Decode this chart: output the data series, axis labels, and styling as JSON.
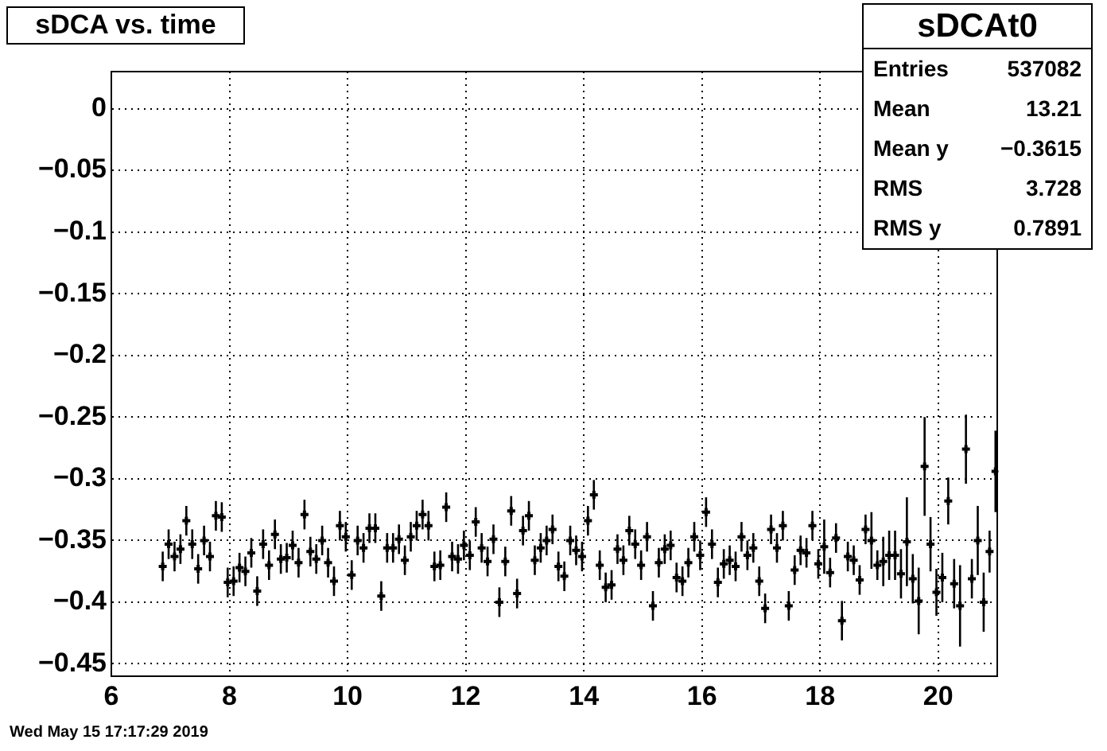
{
  "chart_data": {
    "type": "scatter",
    "title": "sDCA vs. time",
    "x": [
      6.87,
      6.97,
      7.07,
      7.17,
      7.27,
      7.37,
      7.47,
      7.57,
      7.67,
      7.77,
      7.87,
      7.97,
      8.07,
      8.17,
      8.27,
      8.37,
      8.47,
      8.57,
      8.67,
      8.77,
      8.87,
      8.97,
      9.07,
      9.17,
      9.27,
      9.37,
      9.47,
      9.57,
      9.67,
      9.77,
      9.87,
      9.97,
      10.07,
      10.17,
      10.27,
      10.37,
      10.47,
      10.57,
      10.67,
      10.77,
      10.87,
      10.97,
      11.07,
      11.17,
      11.27,
      11.37,
      11.47,
      11.57,
      11.67,
      11.77,
      11.87,
      11.97,
      12.07,
      12.17,
      12.27,
      12.37,
      12.47,
      12.57,
      12.67,
      12.77,
      12.87,
      12.97,
      13.07,
      13.17,
      13.27,
      13.37,
      13.47,
      13.57,
      13.67,
      13.77,
      13.87,
      13.97,
      14.07,
      14.17,
      14.27,
      14.37,
      14.47,
      14.57,
      14.67,
      14.77,
      14.87,
      14.97,
      15.07,
      15.17,
      15.27,
      15.37,
      15.47,
      15.57,
      15.67,
      15.77,
      15.87,
      15.97,
      16.07,
      16.17,
      16.27,
      16.37,
      16.47,
      16.57,
      16.67,
      16.77,
      16.87,
      16.97,
      17.07,
      17.17,
      17.27,
      17.37,
      17.47,
      17.57,
      17.67,
      17.77,
      17.87,
      17.97,
      18.07,
      18.17,
      18.27,
      18.37,
      18.47,
      18.57,
      18.67,
      18.77,
      18.87,
      18.97,
      19.07,
      19.17,
      19.27,
      19.37,
      19.47,
      19.57,
      19.67,
      19.77,
      19.87,
      19.97,
      20.07,
      20.17,
      20.27,
      20.37,
      20.47,
      20.57,
      20.67,
      20.77,
      20.87,
      20.97
    ],
    "series": [
      {
        "color": "#000000",
        "values": [
          -0.371,
          -0.353,
          -0.363,
          -0.357,
          -0.334,
          -0.353,
          -0.373,
          -0.35,
          -0.363,
          -0.33,
          -0.331,
          -0.384,
          -0.383,
          -0.372,
          -0.375,
          -0.36,
          -0.391,
          -0.353,
          -0.37,
          -0.345,
          -0.365,
          -0.364,
          -0.354,
          -0.368,
          -0.329,
          -0.359,
          -0.365,
          -0.35,
          -0.368,
          -0.383,
          -0.338,
          -0.347,
          -0.378,
          -0.35,
          -0.356,
          -0.34,
          -0.34,
          -0.395,
          -0.356,
          -0.356,
          -0.349,
          -0.366,
          -0.347,
          -0.338,
          -0.329,
          -0.338,
          -0.371,
          -0.37,
          -0.323,
          -0.363,
          -0.365,
          -0.354,
          -0.362,
          -0.335,
          -0.356,
          -0.367,
          -0.349,
          -0.4,
          -0.367,
          -0.326,
          -0.393,
          -0.342,
          -0.33,
          -0.366,
          -0.356,
          -0.35,
          -0.341,
          -0.371,
          -0.379,
          -0.35,
          -0.358,
          -0.363,
          -0.334,
          -0.313,
          -0.37,
          -0.388,
          -0.386,
          -0.357,
          -0.366,
          -0.342,
          -0.353,
          -0.37,
          -0.347,
          -0.403,
          -0.368,
          -0.357,
          -0.354,
          -0.38,
          -0.383,
          -0.368,
          -0.347,
          -0.362,
          -0.327,
          -0.353,
          -0.384,
          -0.369,
          -0.366,
          -0.371,
          -0.347,
          -0.362,
          -0.356,
          -0.383,
          -0.405,
          -0.341,
          -0.356,
          -0.338,
          -0.403,
          -0.374,
          -0.358,
          -0.36,
          -0.338,
          -0.369,
          -0.355,
          -0.376,
          -0.348,
          -0.415,
          -0.363,
          -0.366,
          -0.382,
          -0.341,
          -0.35,
          -0.37,
          -0.367,
          -0.362,
          -0.362,
          -0.377,
          -0.351,
          -0.381,
          -0.399,
          -0.29,
          -0.353,
          -0.392,
          -0.38,
          -0.318,
          -0.385,
          -0.403,
          -0.276,
          -0.381,
          -0.35,
          -0.4,
          -0.359,
          -0.294
        ],
        "errors": [
          0.012,
          0.012,
          0.012,
          0.012,
          0.012,
          0.012,
          0.012,
          0.012,
          0.012,
          0.012,
          0.012,
          0.012,
          0.012,
          0.012,
          0.012,
          0.012,
          0.012,
          0.012,
          0.012,
          0.012,
          0.012,
          0.012,
          0.012,
          0.012,
          0.012,
          0.012,
          0.012,
          0.012,
          0.012,
          0.012,
          0.012,
          0.012,
          0.012,
          0.012,
          0.012,
          0.012,
          0.012,
          0.012,
          0.012,
          0.012,
          0.012,
          0.012,
          0.012,
          0.012,
          0.012,
          0.012,
          0.012,
          0.012,
          0.012,
          0.012,
          0.012,
          0.012,
          0.012,
          0.012,
          0.012,
          0.012,
          0.012,
          0.012,
          0.012,
          0.012,
          0.012,
          0.012,
          0.012,
          0.012,
          0.012,
          0.012,
          0.012,
          0.012,
          0.012,
          0.012,
          0.012,
          0.012,
          0.012,
          0.012,
          0.012,
          0.012,
          0.012,
          0.012,
          0.012,
          0.012,
          0.012,
          0.012,
          0.012,
          0.012,
          0.012,
          0.012,
          0.012,
          0.012,
          0.012,
          0.012,
          0.012,
          0.012,
          0.012,
          0.012,
          0.012,
          0.012,
          0.012,
          0.012,
          0.012,
          0.012,
          0.012,
          0.012,
          0.012,
          0.012,
          0.012,
          0.012,
          0.012,
          0.012,
          0.012,
          0.012,
          0.012,
          0.012,
          0.022,
          0.012,
          0.012,
          0.016,
          0.012,
          0.012,
          0.012,
          0.012,
          0.023,
          0.012,
          0.02,
          0.02,
          0.02,
          0.02,
          0.036,
          0.02,
          0.027,
          0.04,
          0.022,
          0.019,
          0.02,
          0.019,
          0.02,
          0.033,
          0.028,
          0.016,
          0.028,
          0.024,
          0.017,
          0.033
        ],
        "xerrors": [
          0.05,
          0.05,
          0.05,
          0.05,
          0.05,
          0.05,
          0.05,
          0.05,
          0.05,
          0.05,
          0.05,
          0.05,
          0.05,
          0.05,
          0.05,
          0.05,
          0.05,
          0.05,
          0.05,
          0.05,
          0.05,
          0.05,
          0.05,
          0.05,
          0.05,
          0.05,
          0.05,
          0.05,
          0.05,
          0.05,
          0.05,
          0.05,
          0.05,
          0.05,
          0.05,
          0.05,
          0.05,
          0.05,
          0.05,
          0.05,
          0.05,
          0.05,
          0.05,
          0.05,
          0.05,
          0.05,
          0.05,
          0.05,
          0.05,
          0.05,
          0.05,
          0.05,
          0.05,
          0.05,
          0.05,
          0.05,
          0.05,
          0.05,
          0.05,
          0.05,
          0.05,
          0.05,
          0.05,
          0.05,
          0.05,
          0.05,
          0.05,
          0.05,
          0.05,
          0.05,
          0.05,
          0.05,
          0.05,
          0.05,
          0.05,
          0.05,
          0.05,
          0.05,
          0.05,
          0.05,
          0.05,
          0.05,
          0.05,
          0.05,
          0.05,
          0.05,
          0.05,
          0.05,
          0.05,
          0.05,
          0.05,
          0.05,
          0.05,
          0.05,
          0.05,
          0.05,
          0.05,
          0.05,
          0.05,
          0.05,
          0.05,
          0.05,
          0.05,
          0.05,
          0.05,
          0.05,
          0.05,
          0.05,
          0.05,
          0.05,
          0.05,
          0.05,
          0.05,
          0.05,
          0.05,
          0.05,
          0.05,
          0.05,
          0.05,
          0.05,
          0.05,
          0.05,
          0.05,
          0.05,
          0.05,
          0.05,
          0.05,
          0.05,
          0.05,
          0.05,
          0.05,
          0.05,
          0.05,
          0.05,
          0.05,
          0.05,
          0.05,
          0.05,
          0.05,
          0.05,
          0.05,
          0.05
        ]
      }
    ],
    "xlim": [
      6,
      21
    ],
    "xticks": [
      6,
      8,
      10,
      12,
      14,
      16,
      18,
      20
    ],
    "ylim": [
      -0.46,
      0.03
    ],
    "yticks": [
      0,
      {
        "value": -0.05,
        "label": "−0.05"
      },
      {
        "value": -0.1,
        "label": "−0.1"
      },
      {
        "value": -0.15,
        "label": "−0.15"
      },
      {
        "value": -0.2,
        "label": "−0.2"
      },
      {
        "value": -0.25,
        "label": "−0.25"
      },
      {
        "value": -0.3,
        "label": "−0.3"
      },
      {
        "value": -0.35,
        "label": "−0.35"
      },
      {
        "value": -0.4,
        "label": "−0.4"
      },
      {
        "value": -0.45,
        "label": "−0.45"
      }
    ],
    "grid": true,
    "marker": "cross",
    "annotations": [
      "sDCAt0",
      "Entries",
      "537082",
      "Mean",
      "13.21",
      "Mean y",
      "−0.3615",
      "RMS",
      "3.728",
      "RMS y",
      "0.7891",
      "Wed May 15 17:17:29 2019"
    ]
  }
}
